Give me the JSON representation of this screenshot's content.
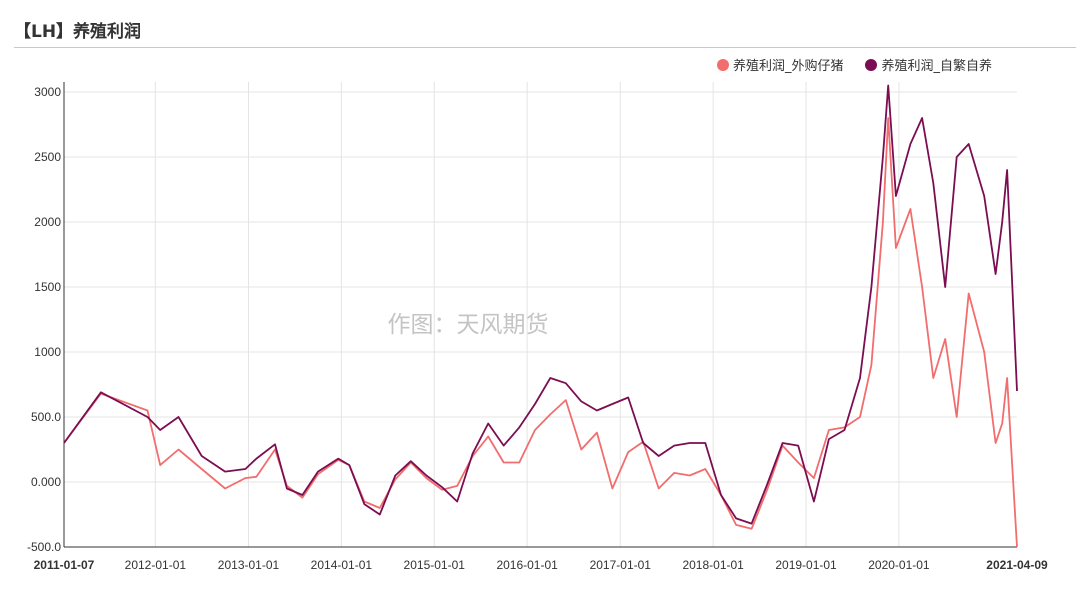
{
  "header": {
    "title": "【LH】养殖利润"
  },
  "watermark": "作图：天风期货",
  "chart_data": {
    "type": "line",
    "title": "【LH】养殖利润",
    "xlabel": "",
    "ylabel": "",
    "ylim": [
      -500,
      3000
    ],
    "yticks": [
      -500,
      0,
      500,
      1000,
      1500,
      2000,
      2500,
      3000
    ],
    "ytick_labels": [
      "-500.0",
      "0.000",
      "500.0",
      "1000",
      "1500",
      "2000",
      "2500",
      "3000"
    ],
    "xlim": [
      "2011-01-07",
      "2021-04-09"
    ],
    "xtick_labels": [
      "2011-01-07",
      "2012-01-01",
      "2013-01-01",
      "2014-01-01",
      "2015-01-01",
      "2016-01-01",
      "2017-01-01",
      "2018-01-01",
      "2019-01-01",
      "2020-01-01",
      "2021-04-09"
    ],
    "grid": true,
    "legend_position": "top-right",
    "series": [
      {
        "name": "养殖利润_外购仔猪",
        "color": "#f26d6d",
        "x": [
          "2011-01-07",
          "2011-06-01",
          "2011-12-01",
          "2012-01-20",
          "2012-04-01",
          "2012-07-01",
          "2012-10-01",
          "2012-12-20",
          "2013-02-01",
          "2013-04-15",
          "2013-06-01",
          "2013-08-01",
          "2013-10-01",
          "2013-12-20",
          "2014-02-01",
          "2014-04-01",
          "2014-06-01",
          "2014-08-01",
          "2014-10-01",
          "2014-12-01",
          "2015-02-01",
          "2015-04-01",
          "2015-06-01",
          "2015-08-01",
          "2015-10-01",
          "2015-12-01",
          "2016-02-01",
          "2016-04-01",
          "2016-06-01",
          "2016-08-01",
          "2016-10-01",
          "2016-12-01",
          "2017-02-01",
          "2017-04-01",
          "2017-06-01",
          "2017-08-01",
          "2017-10-01",
          "2017-12-01",
          "2018-02-01",
          "2018-04-01",
          "2018-06-01",
          "2018-08-01",
          "2018-10-01",
          "2018-12-01",
          "2019-02-01",
          "2019-04-01",
          "2019-06-01",
          "2019-08-01",
          "2019-09-15",
          "2019-10-30",
          "2019-11-20",
          "2019-12-20",
          "2020-02-15",
          "2020-04-01",
          "2020-05-15",
          "2020-07-01",
          "2020-08-15",
          "2020-10-01",
          "2020-12-01",
          "2021-01-15",
          "2021-02-10",
          "2021-03-01",
          "2021-04-09"
        ],
        "values": [
          300,
          680,
          550,
          130,
          250,
          100,
          -50,
          30,
          40,
          250,
          -30,
          -120,
          60,
          170,
          130,
          -150,
          -200,
          20,
          150,
          30,
          -60,
          -30,
          200,
          350,
          150,
          150,
          400,
          520,
          630,
          250,
          380,
          -50,
          230,
          310,
          -50,
          70,
          50,
          100,
          -100,
          -330,
          -360,
          -60,
          280,
          150,
          30,
          400,
          420,
          500,
          900,
          2000,
          2800,
          1800,
          2100,
          1500,
          800,
          1100,
          500,
          1450,
          1000,
          300,
          450,
          800,
          -500
        ]
      },
      {
        "name": "养殖利润_自繁自养",
        "color": "#7b0d52",
        "x": [
          "2011-01-07",
          "2011-06-01",
          "2011-12-01",
          "2012-01-20",
          "2012-04-01",
          "2012-07-01",
          "2012-10-01",
          "2012-12-20",
          "2013-02-01",
          "2013-04-15",
          "2013-06-01",
          "2013-08-01",
          "2013-10-01",
          "2013-12-20",
          "2014-02-01",
          "2014-04-01",
          "2014-06-01",
          "2014-08-01",
          "2014-10-01",
          "2014-12-01",
          "2015-02-01",
          "2015-04-01",
          "2015-06-01",
          "2015-08-01",
          "2015-10-01",
          "2015-12-01",
          "2016-02-01",
          "2016-04-01",
          "2016-06-01",
          "2016-08-01",
          "2016-10-01",
          "2016-12-01",
          "2017-02-01",
          "2017-04-01",
          "2017-06-01",
          "2017-08-01",
          "2017-10-01",
          "2017-12-01",
          "2018-02-01",
          "2018-04-01",
          "2018-06-01",
          "2018-08-01",
          "2018-10-01",
          "2018-12-01",
          "2019-02-01",
          "2019-04-01",
          "2019-06-01",
          "2019-08-01",
          "2019-09-15",
          "2019-10-30",
          "2019-11-20",
          "2019-12-20",
          "2020-02-15",
          "2020-04-01",
          "2020-05-15",
          "2020-07-01",
          "2020-08-15",
          "2020-10-01",
          "2020-12-01",
          "2021-01-15",
          "2021-02-10",
          "2021-03-01",
          "2021-04-09"
        ],
        "values": [
          300,
          690,
          500,
          400,
          500,
          200,
          80,
          100,
          180,
          290,
          -50,
          -100,
          80,
          180,
          130,
          -170,
          -250,
          50,
          160,
          50,
          -40,
          -150,
          220,
          450,
          280,
          420,
          600,
          800,
          760,
          620,
          550,
          600,
          650,
          300,
          200,
          280,
          300,
          300,
          -100,
          -280,
          -320,
          -20,
          300,
          280,
          -150,
          330,
          400,
          800,
          1500,
          2500,
          3050,
          2200,
          2600,
          2800,
          2300,
          1500,
          2500,
          2600,
          2200,
          1600,
          2000,
          2400,
          700
        ]
      }
    ]
  }
}
